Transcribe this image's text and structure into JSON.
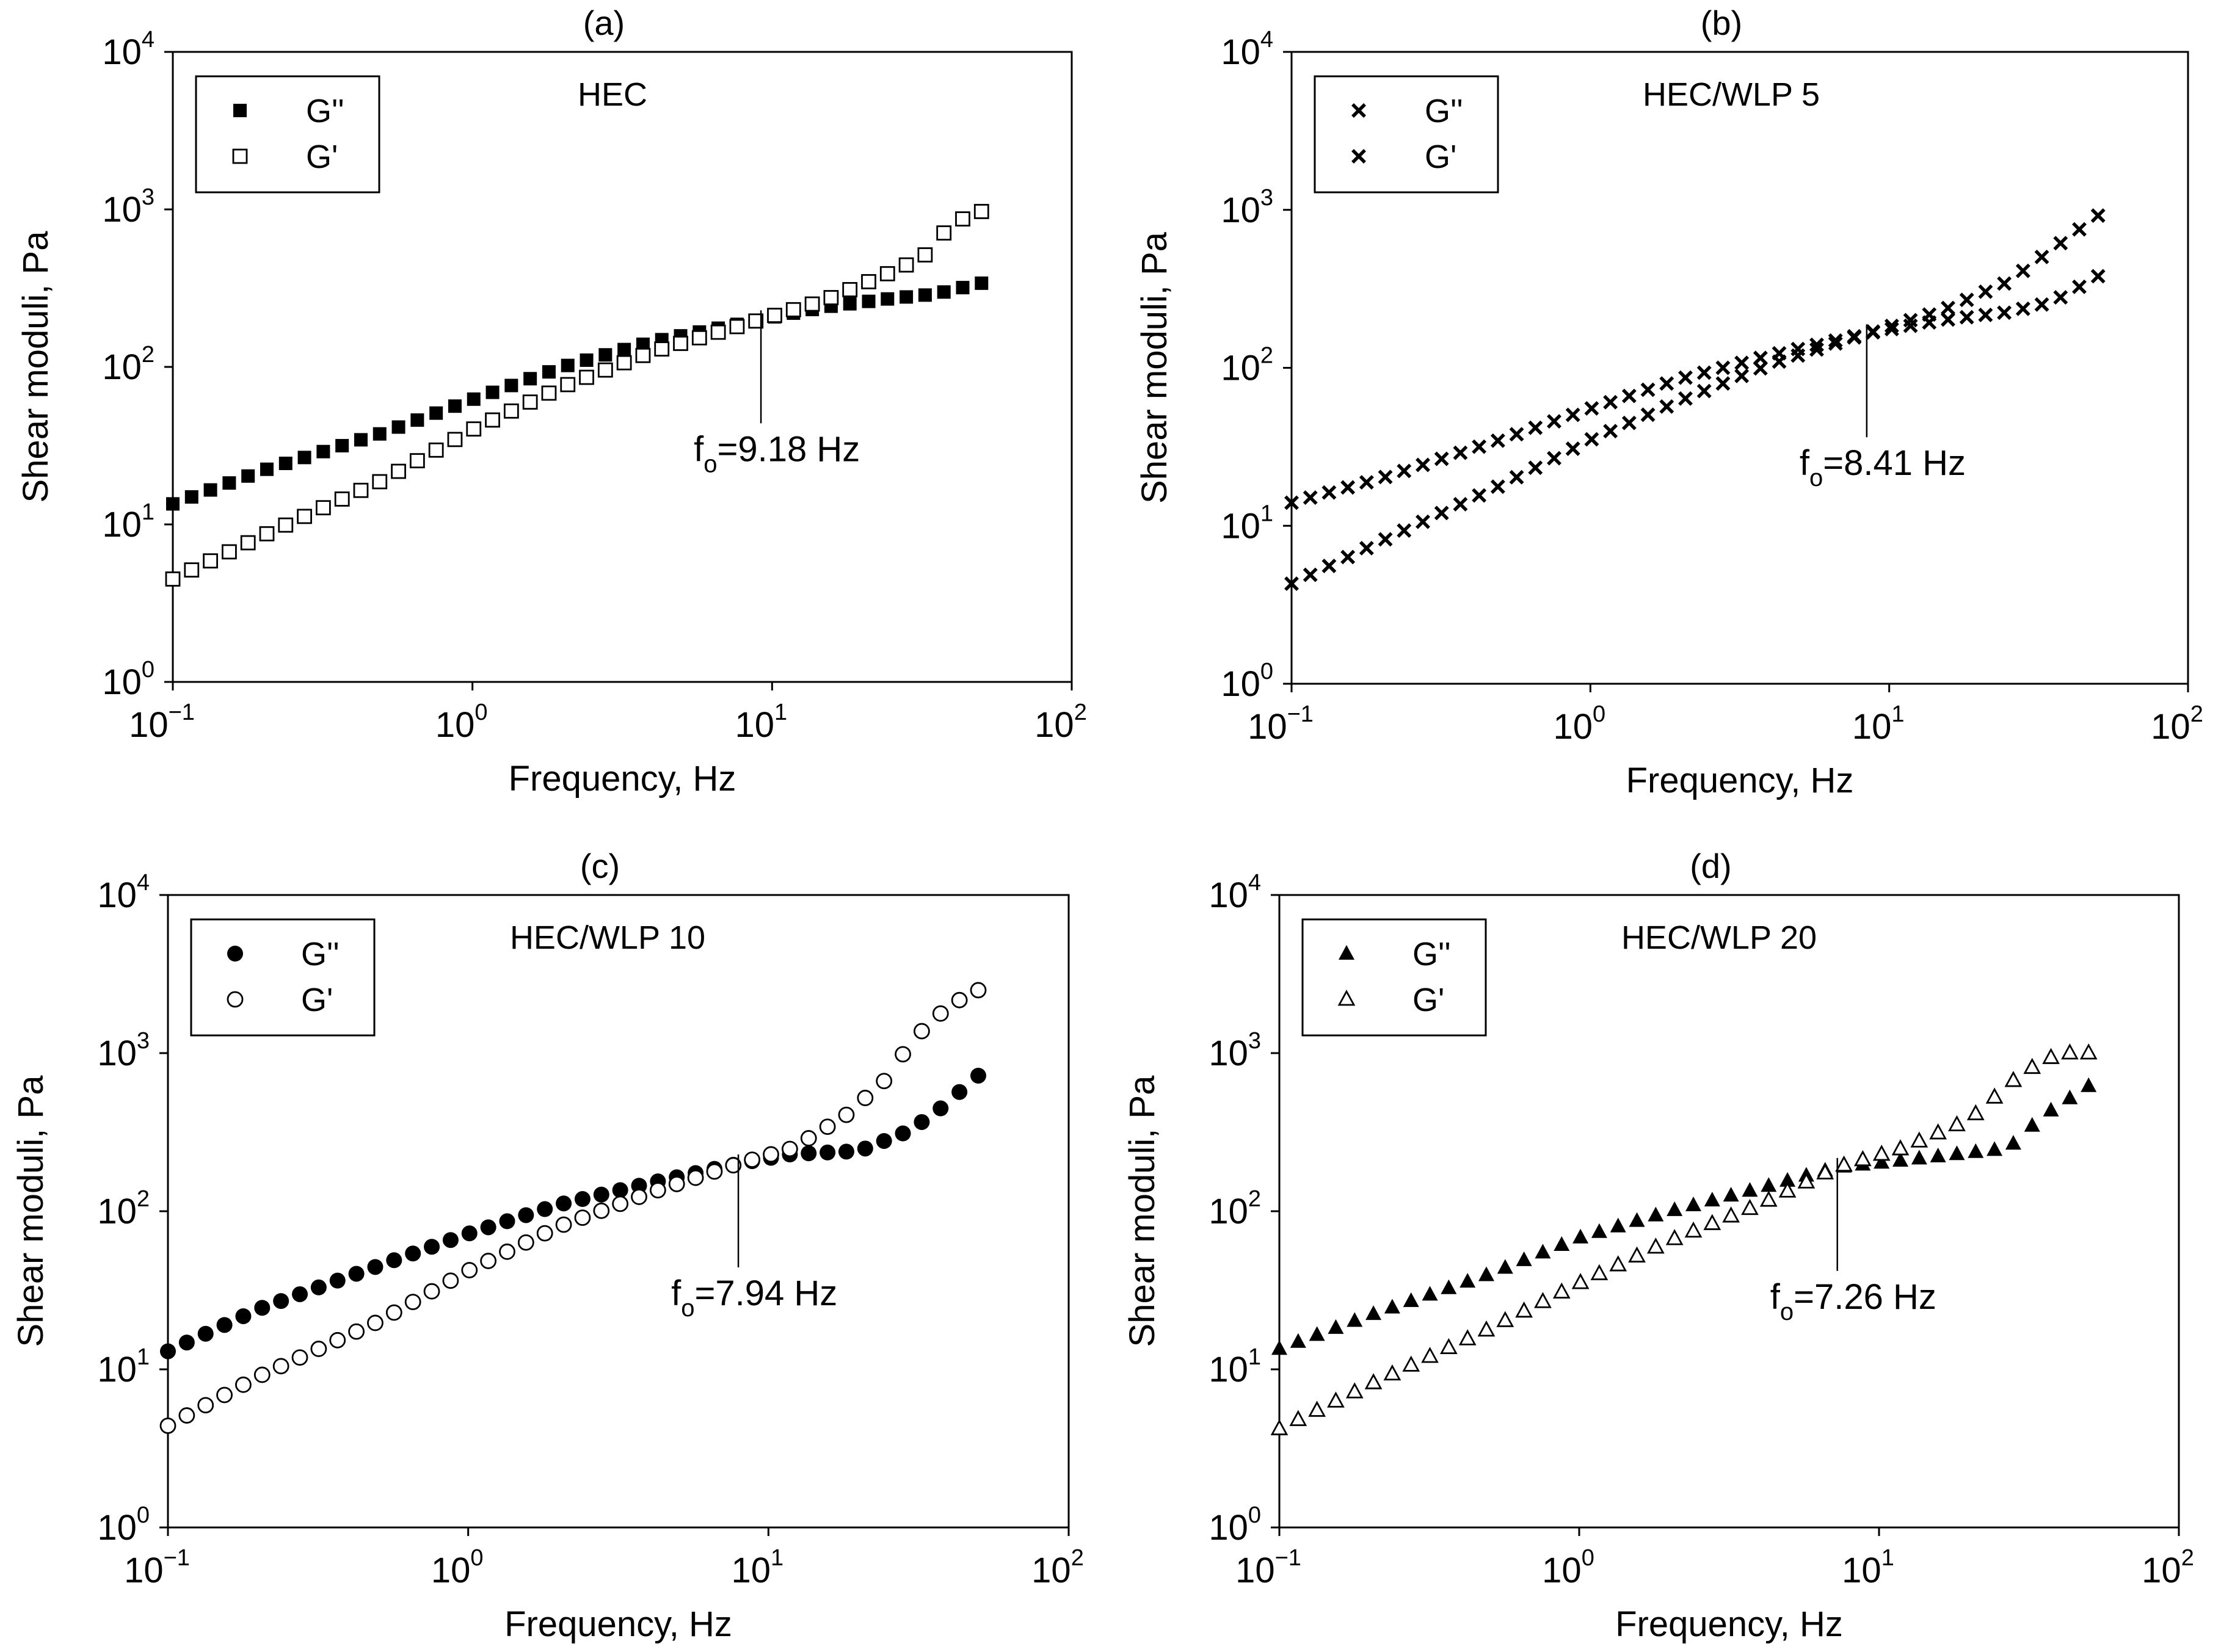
{
  "chart_data": [
    {
      "type": "scatter",
      "panel_label": "(a)",
      "sample": "HEC",
      "xlabel": "Frequency, Hz",
      "ylabel": "Shear moduli, Pa",
      "xscale": "log",
      "yscale": "log",
      "xlim": [
        0.1,
        100
      ],
      "ylim": [
        1,
        10000
      ],
      "x_ticks": [
        {
          "base": "10",
          "exp": "−1"
        },
        {
          "base": "10",
          "exp": "0"
        },
        {
          "base": "10",
          "exp": "1"
        },
        {
          "base": "10",
          "exp": "2"
        }
      ],
      "y_ticks": [
        {
          "base": "10",
          "exp": "0"
        },
        {
          "base": "10",
          "exp": "1"
        },
        {
          "base": "10",
          "exp": "2"
        },
        {
          "base": "10",
          "exp": "3"
        },
        {
          "base": "10",
          "exp": "4"
        }
      ],
      "legend_position": "top-left",
      "crossover": {
        "frequency": 9.18,
        "modulus": 200,
        "label_main": "f",
        "label_sub": "o",
        "label_rest": "=9.18 Hz"
      },
      "series": [
        {
          "name": "G''",
          "marker": "square-filled",
          "points": [
            [
              0.1,
              13.5
            ],
            [
              0.2,
              22
            ],
            [
              0.5,
              38
            ],
            [
              1,
              62
            ],
            [
              2,
              100
            ],
            [
              4,
              145
            ],
            [
              9.18,
              200
            ],
            [
              15,
              240
            ],
            [
              25,
              272
            ],
            [
              35,
              290
            ],
            [
              50,
              340
            ]
          ]
        },
        {
          "name": "G'",
          "marker": "square-open",
          "points": [
            [
              0.1,
              4.5
            ],
            [
              0.2,
              8.5
            ],
            [
              0.5,
              19
            ],
            [
              1,
              40
            ],
            [
              2,
              75
            ],
            [
              4,
              125
            ],
            [
              9.18,
              200
            ],
            [
              15,
              265
            ],
            [
              25,
              400
            ],
            [
              32,
              500
            ],
            [
              40,
              820
            ],
            [
              50,
              970
            ]
          ]
        }
      ]
    },
    {
      "type": "scatter",
      "panel_label": "(b)",
      "sample": "HEC/WLP 5",
      "xlabel": "Frequency, Hz",
      "ylabel": "Shear moduli, Pa",
      "xscale": "log",
      "yscale": "log",
      "xlim": [
        0.1,
        100
      ],
      "ylim": [
        1,
        10000
      ],
      "x_ticks": [
        {
          "base": "10",
          "exp": "−1"
        },
        {
          "base": "10",
          "exp": "0"
        },
        {
          "base": "10",
          "exp": "1"
        },
        {
          "base": "10",
          "exp": "2"
        }
      ],
      "y_ticks": [
        {
          "base": "10",
          "exp": "0"
        },
        {
          "base": "10",
          "exp": "1"
        },
        {
          "base": "10",
          "exp": "2"
        },
        {
          "base": "10",
          "exp": "3"
        },
        {
          "base": "10",
          "exp": "4"
        }
      ],
      "legend_position": "top-left",
      "crossover": {
        "frequency": 8.41,
        "modulus": 165,
        "label_main": "f",
        "label_sub": "o",
        "label_rest": "=8.41 Hz"
      },
      "series": [
        {
          "name": "G''",
          "marker": "cross",
          "points": [
            [
              0.1,
              14
            ],
            [
              0.2,
              20
            ],
            [
              0.5,
              35
            ],
            [
              1,
              55
            ],
            [
              2,
              85
            ],
            [
              4,
              120
            ],
            [
              8.41,
              165
            ],
            [
              15,
              200
            ],
            [
              25,
              225
            ],
            [
              35,
              260
            ],
            [
              50,
              380
            ]
          ]
        },
        {
          "name": "G'",
          "marker": "cross",
          "points": [
            [
              0.1,
              4.3
            ],
            [
              0.2,
              8
            ],
            [
              0.5,
              18
            ],
            [
              1,
              35
            ],
            [
              2,
              62
            ],
            [
              4,
              105
            ],
            [
              8.41,
              165
            ],
            [
              15,
              230
            ],
            [
              25,
              350
            ],
            [
              35,
              560
            ],
            [
              50,
              920
            ]
          ]
        }
      ]
    },
    {
      "type": "scatter",
      "panel_label": "(c)",
      "sample": "HEC/WLP 10",
      "xlabel": "Frequency, Hz",
      "ylabel": "Shear moduli, Pa",
      "xscale": "log",
      "yscale": "log",
      "xlim": [
        0.1,
        100
      ],
      "ylim": [
        1,
        10000
      ],
      "x_ticks": [
        {
          "base": "10",
          "exp": "−1"
        },
        {
          "base": "10",
          "exp": "0"
        },
        {
          "base": "10",
          "exp": "1"
        },
        {
          "base": "10",
          "exp": "2"
        }
      ],
      "y_ticks": [
        {
          "base": "10",
          "exp": "0"
        },
        {
          "base": "10",
          "exp": "1"
        },
        {
          "base": "10",
          "exp": "2"
        },
        {
          "base": "10",
          "exp": "3"
        },
        {
          "base": "10",
          "exp": "4"
        }
      ],
      "legend_position": "top-left",
      "crossover": {
        "frequency": 7.94,
        "modulus": 200,
        "label_main": "f",
        "label_sub": "o",
        "label_rest": "=7.94 Hz"
      },
      "series": [
        {
          "name": "G''",
          "marker": "circle-filled",
          "points": [
            [
              0.1,
              13
            ],
            [
              0.2,
              24
            ],
            [
              0.5,
              45
            ],
            [
              1,
              72
            ],
            [
              2,
              110
            ],
            [
              4,
              150
            ],
            [
              7.94,
              200
            ],
            [
              12,
              230
            ],
            [
              20,
              240
            ],
            [
              28,
              310
            ],
            [
              35,
              400
            ],
            [
              50,
              720
            ]
          ]
        },
        {
          "name": "G'",
          "marker": "circle-open",
          "points": [
            [
              0.1,
              4.4
            ],
            [
              0.2,
              9
            ],
            [
              0.5,
              20
            ],
            [
              1,
              42
            ],
            [
              2,
              80
            ],
            [
              4,
              130
            ],
            [
              7.94,
              200
            ],
            [
              12,
              250
            ],
            [
              18,
              400
            ],
            [
              25,
              700
            ],
            [
              30,
              1200
            ],
            [
              40,
              2000
            ],
            [
              50,
              2500
            ]
          ]
        }
      ]
    },
    {
      "type": "scatter",
      "panel_label": "(d)",
      "sample": "HEC/WLP 20",
      "xlabel": "Frequency, Hz",
      "ylabel": "Shear moduli, Pa",
      "xscale": "log",
      "yscale": "log",
      "xlim": [
        0.1,
        100
      ],
      "ylim": [
        1,
        10000
      ],
      "x_ticks": [
        {
          "base": "10",
          "exp": "−1"
        },
        {
          "base": "10",
          "exp": "0"
        },
        {
          "base": "10",
          "exp": "1"
        },
        {
          "base": "10",
          "exp": "2"
        }
      ],
      "y_ticks": [
        {
          "base": "10",
          "exp": "0"
        },
        {
          "base": "10",
          "exp": "1"
        },
        {
          "base": "10",
          "exp": "2"
        },
        {
          "base": "10",
          "exp": "3"
        },
        {
          "base": "10",
          "exp": "4"
        }
      ],
      "legend_position": "top-left",
      "crossover": {
        "frequency": 7.26,
        "modulus": 190,
        "label_main": "f",
        "label_sub": "o",
        "label_rest": "=7.26 Hz"
      },
      "series": [
        {
          "name": "G''",
          "marker": "triangle-filled",
          "points": [
            [
              0.1,
              13.5
            ],
            [
              0.2,
              22
            ],
            [
              0.5,
              40
            ],
            [
              1,
              68
            ],
            [
              2,
              100
            ],
            [
              4,
              140
            ],
            [
              7.26,
              190
            ],
            [
              12,
              210
            ],
            [
              20,
              235
            ],
            [
              27,
              250
            ],
            [
              35,
              400
            ],
            [
              50,
              620
            ]
          ]
        },
        {
          "name": "G'",
          "marker": "triangle-open",
          "points": [
            [
              0.1,
              4.2
            ],
            [
              0.2,
              8
            ],
            [
              0.5,
              18
            ],
            [
              1,
              35
            ],
            [
              2,
              65
            ],
            [
              4,
              110
            ],
            [
              7.26,
              190
            ],
            [
              12,
              250
            ],
            [
              20,
              380
            ],
            [
              30,
              750
            ],
            [
              40,
              1000
            ],
            [
              50,
              1000
            ]
          ]
        }
      ]
    }
  ]
}
